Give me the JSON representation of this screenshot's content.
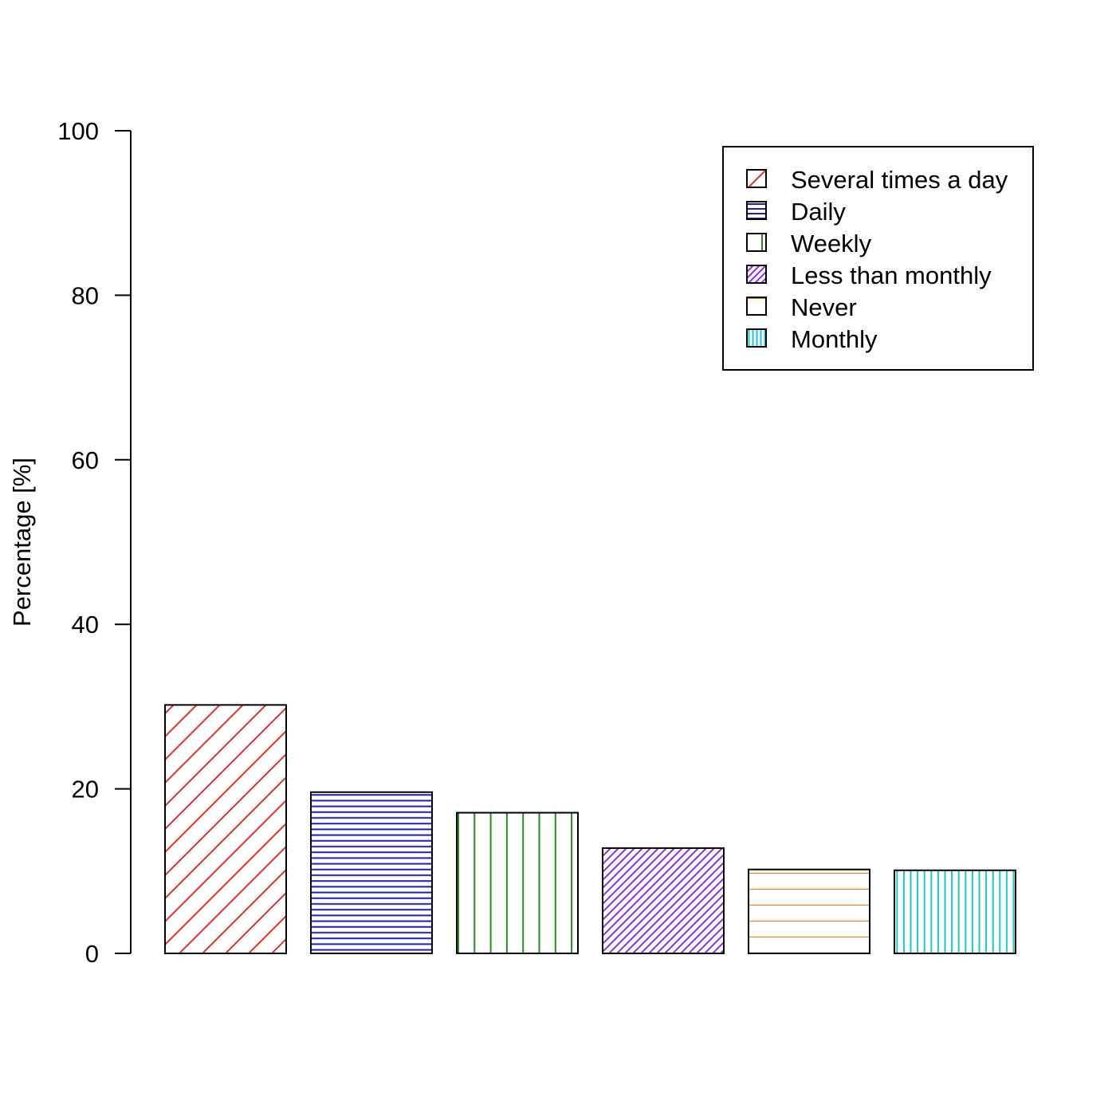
{
  "chart_data": {
    "type": "bar",
    "ylabel": "Percentage [%]",
    "xlabel": "",
    "ylim": [
      0,
      100
    ],
    "yticks": [
      0,
      20,
      40,
      60,
      80,
      100
    ],
    "grid": false,
    "legend_position": "top-right",
    "categories": [
      "Several times a day",
      "Daily",
      "Weekly",
      "Less than monthly",
      "Never",
      "Monthly"
    ],
    "values": [
      30.2,
      19.6,
      17.1,
      12.8,
      10.2,
      10.1
    ],
    "colors": [
      "#e52b2b",
      "#1a1acc",
      "#228b22",
      "#8a2be2",
      "#ee7d13",
      "#1ec8c8"
    ],
    "patterns": [
      "diagonal",
      "horizontal",
      "vertical",
      "diagonal",
      "horizontal",
      "vertical"
    ],
    "legend": [
      {
        "label": "Several times a day",
        "color": "#e52b2b",
        "pattern": "diagonal"
      },
      {
        "label": "Daily",
        "color": "#1a1acc",
        "pattern": "horizontal"
      },
      {
        "label": "Weekly",
        "color": "#228b22",
        "pattern": "vertical"
      },
      {
        "label": "Less than monthly",
        "color": "#8a2be2",
        "pattern": "diagonal"
      },
      {
        "label": "Never",
        "color": "#ee7d13",
        "pattern": "horizontal"
      },
      {
        "label": "Monthly",
        "color": "#1ec8c8",
        "pattern": "vertical"
      }
    ]
  }
}
